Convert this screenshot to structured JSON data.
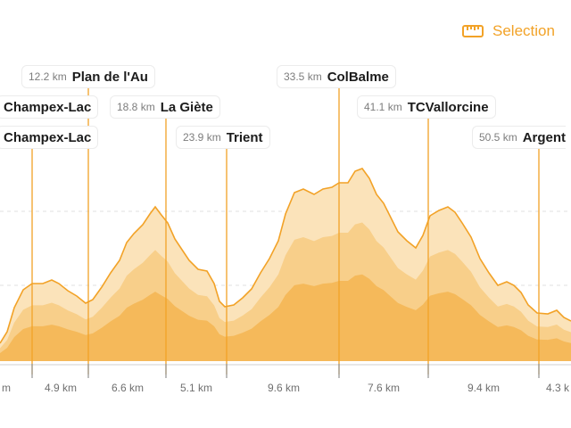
{
  "header": {
    "selection_label": "Selection",
    "selection_icon": "ruler-icon"
  },
  "colors": {
    "accent": "#f2a227",
    "fill_light": "#fbe3ba",
    "fill_mid": "#f8cf8a",
    "fill_dark": "#f5b95a"
  },
  "waypoints": [
    {
      "dist": "",
      "name": "Champex-Lac"
    },
    {
      "dist": "",
      "name": "Champex-Lac"
    },
    {
      "dist": "12.2 km",
      "name": "Plan de l'Au"
    },
    {
      "dist": "18.8 km",
      "name": "La Giète"
    },
    {
      "dist": "23.9 km",
      "name": "Trient"
    },
    {
      "dist": "33.5 km",
      "name": "ColBalme"
    },
    {
      "dist": "41.1 km",
      "name": "TCVallorcine"
    },
    {
      "dist": "50.5 km",
      "name": "Argent"
    }
  ],
  "segments": [
    "m",
    "4.9 km",
    "6.6 km",
    "5.1 km",
    "9.6 km",
    "7.6 km",
    "9.4 km",
    "4.3 k"
  ]
}
